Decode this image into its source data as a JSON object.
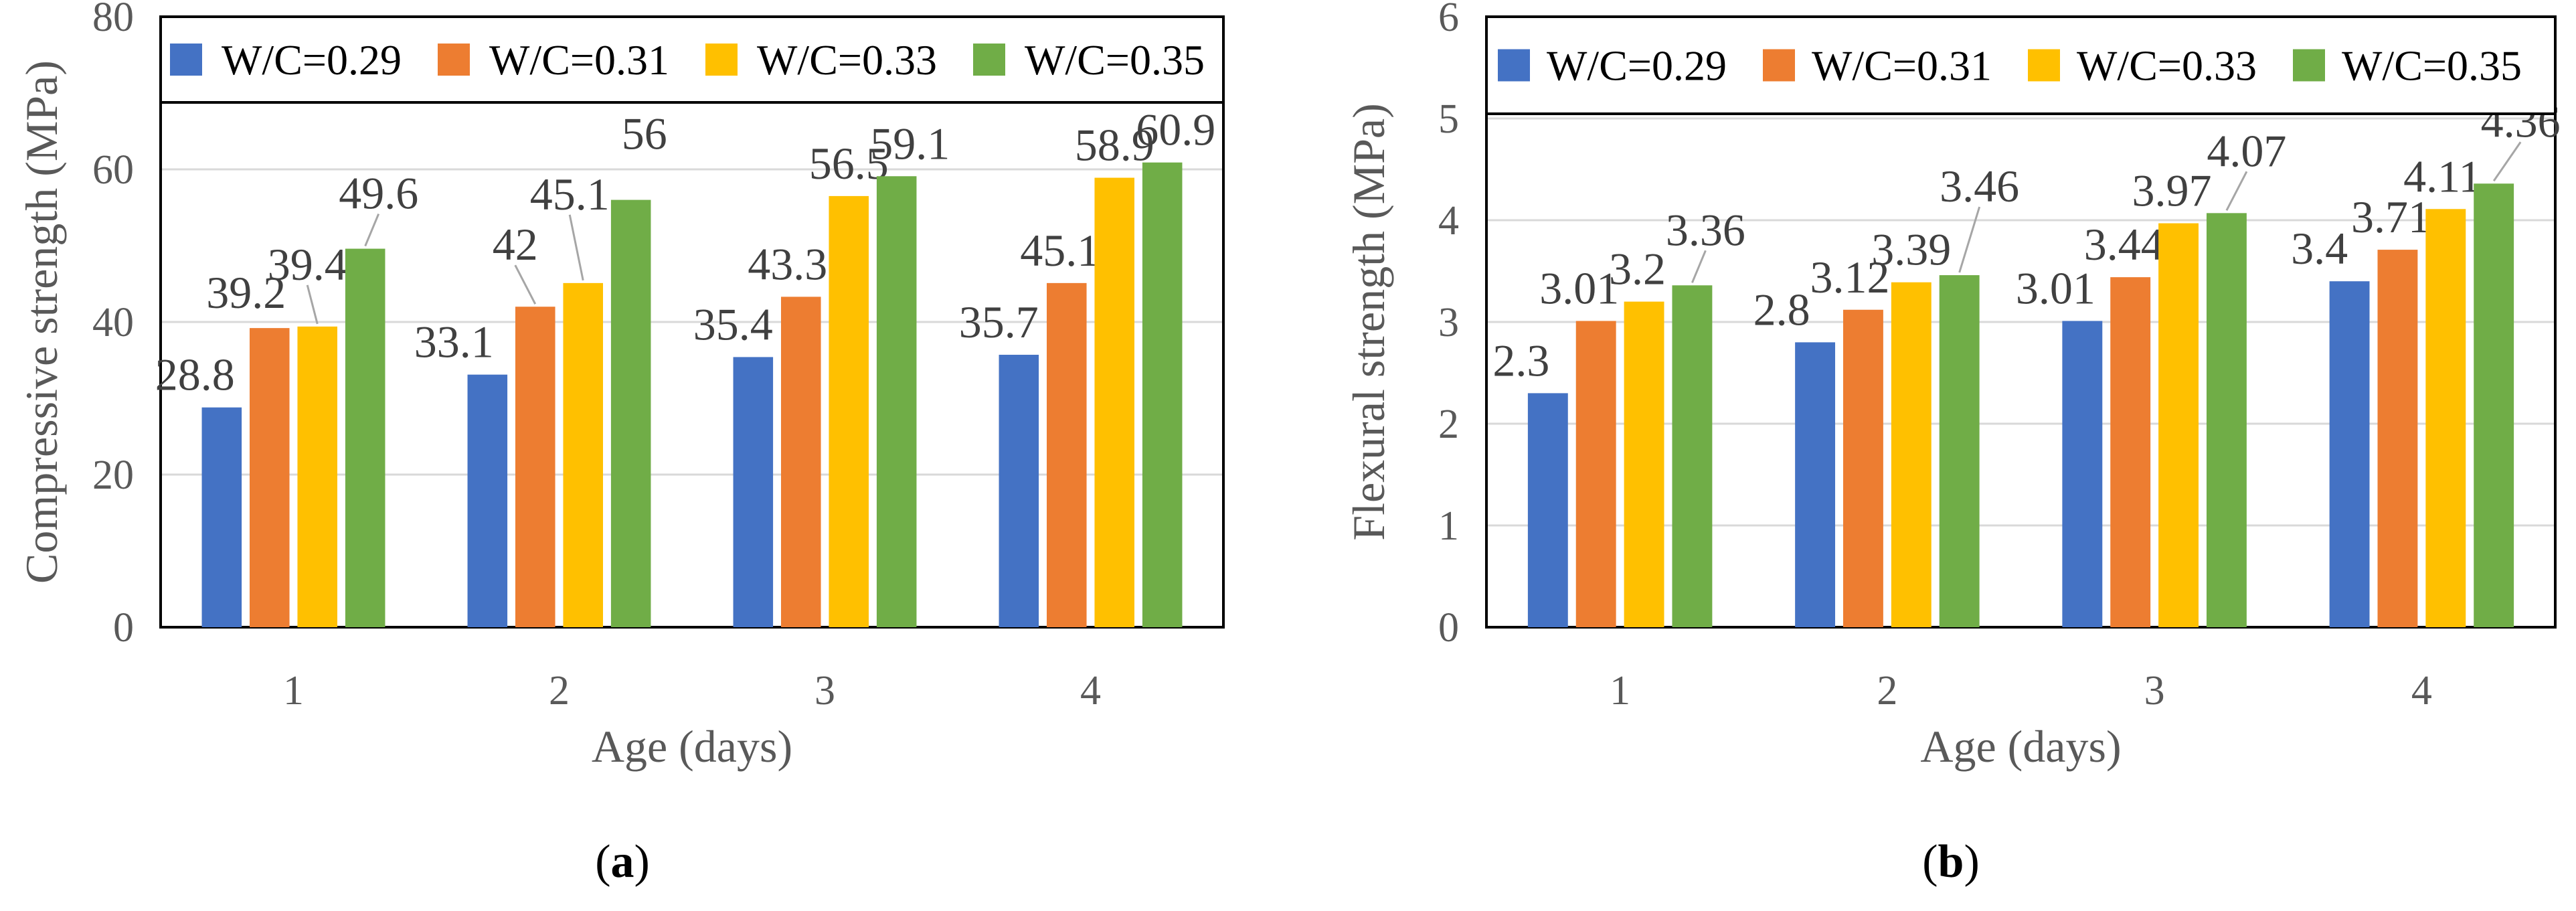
{
  "chart_data": [
    {
      "type": "bar",
      "categories": [
        "1",
        "2",
        "3",
        "4"
      ],
      "series": [
        {
          "name": "W/C=0.29",
          "color": "#4472C4",
          "values": [
            28.8,
            33.1,
            35.4,
            35.7
          ]
        },
        {
          "name": "W/C=0.31",
          "color": "#ED7D31",
          "values": [
            39.2,
            42,
            43.3,
            45.1
          ]
        },
        {
          "name": "W/C=0.33",
          "color": "#FFC000",
          "values": [
            39.4,
            45.1,
            56.5,
            58.9
          ]
        },
        {
          "name": "W/C=0.35",
          "color": "#70AD47",
          "values": [
            49.6,
            56,
            59.1,
            60.9
          ]
        }
      ],
      "labels": [
        [
          "28.8",
          "33.1",
          "35.4",
          "35.7"
        ],
        [
          "39.2",
          "42",
          "43.3",
          "45.1"
        ],
        [
          "39.4",
          "45.1",
          "56.5",
          "58.9"
        ],
        [
          "49.6",
          "56",
          "59.1",
          "60.9"
        ]
      ],
      "xlabel": "Age (days)",
      "ylabel": "Compressive strength (MPa)",
      "ylim": [
        0,
        80
      ],
      "yticks": [
        "0",
        "20",
        "40",
        "60",
        "80"
      ],
      "caption_open": "(",
      "caption_letter": "a",
      "caption_close": ")"
    },
    {
      "type": "bar",
      "categories": [
        "1",
        "2",
        "3",
        "4"
      ],
      "series": [
        {
          "name": "W/C=0.29",
          "color": "#4472C4",
          "values": [
            2.3,
            2.8,
            3.01,
            3.4
          ]
        },
        {
          "name": "W/C=0.31",
          "color": "#ED7D31",
          "values": [
            3.01,
            3.12,
            3.44,
            3.71
          ]
        },
        {
          "name": "W/C=0.33",
          "color": "#FFC000",
          "values": [
            3.2,
            3.39,
            3.97,
            4.11
          ]
        },
        {
          "name": "W/C=0.35",
          "color": "#70AD47",
          "values": [
            3.36,
            3.46,
            4.07,
            4.36
          ]
        }
      ],
      "labels": [
        [
          "2.3",
          "2.8",
          "3.01",
          "3.4"
        ],
        [
          "3.01",
          "3.12",
          "3.44",
          "3.71"
        ],
        [
          "3.2",
          "3.39",
          "3.97",
          "4.11"
        ],
        [
          "3.36",
          "3.46",
          "4.07",
          "4.36"
        ]
      ],
      "xlabel": "Age (days)",
      "ylabel": "Flexural strength (MPa)",
      "ylim": [
        0,
        6
      ],
      "yticks": [
        "0",
        "1",
        "2",
        "3",
        "4",
        "5",
        "6"
      ],
      "caption_open": "(",
      "caption_letter": "b",
      "caption_close": ")"
    }
  ]
}
